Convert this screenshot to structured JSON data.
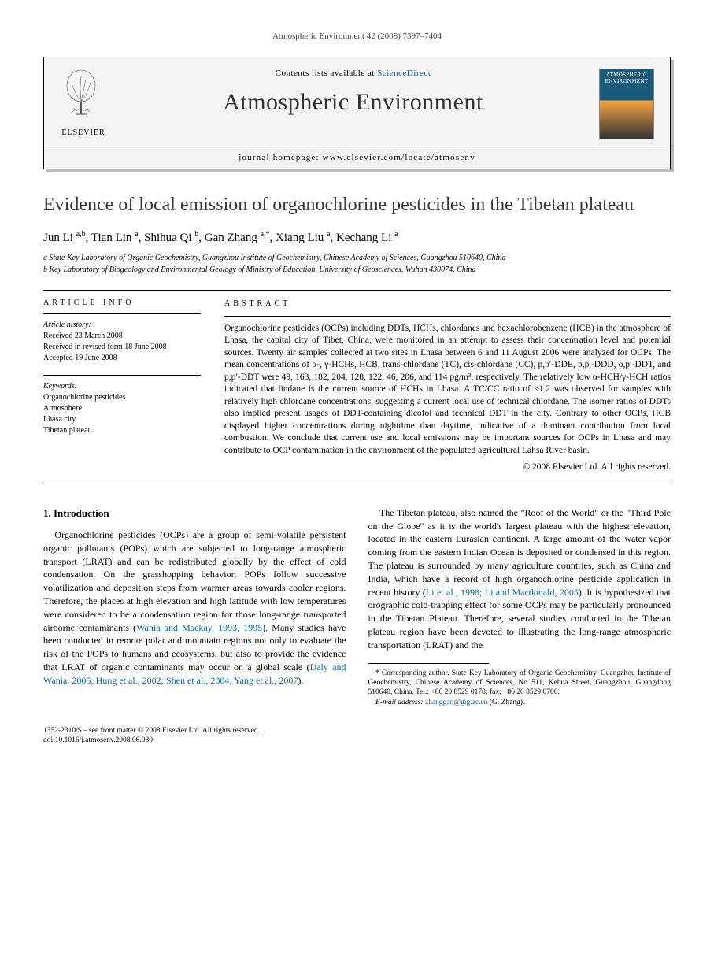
{
  "running_head": "Atmospheric Environment 42 (2008) 7397–7404",
  "header": {
    "contents_prefix": "Contents lists available at ",
    "contents_link": "ScienceDirect",
    "journal_name": "Atmospheric Environment",
    "homepage_label": "journal homepage: ",
    "homepage_url": "www.elsevier.com/locate/atmosenv",
    "publisher_label": "ELSEVIER",
    "cover_text": "ATMOSPHERIC ENVIRONMENT"
  },
  "title": "Evidence of local emission of organochlorine pesticides in the Tibetan plateau",
  "authors_html": "Jun Li <sup>a,b</sup>, Tian Lin <sup>a</sup>, Shihua Qi <sup>b</sup>, Gan Zhang <sup>a,*</sup>, Xiang Liu <sup>a</sup>, Kechang Li <sup>a</sup>",
  "affiliations": [
    "a State Key Laboratory of Organic Geochemistry, Guangzhou Institute of Geochemistry, Chinese Academy of Sciences, Guangzhou 510640, China",
    "b Key Laboratory of Biogeology and Environmental Geology of Ministry of Education, University of Geosciences, Wuhan 430074, China"
  ],
  "article_info": {
    "label": "ARTICLE INFO",
    "history_title": "Article history:",
    "history": [
      "Received 23 March 2008",
      "Received in revised form 18 June 2008",
      "Accepted 19 June 2008"
    ],
    "keywords_title": "Keywords:",
    "keywords": [
      "Organochlorine pesticides",
      "Atmosphere",
      "Lhasa city",
      "Tibetan plateau"
    ]
  },
  "abstract": {
    "label": "ABSTRACT",
    "text": "Organochlorine pesticides (OCPs) including DDTs, HCHs, chlordanes and hexachlorobenzene (HCB) in the atmosphere of Lhasa, the capital city of Tibet, China, were monitored in an attempt to assess their concentration level and potential sources. Twenty air samples collected at two sites in Lhasa between 6 and 11 August 2006 were analyzed for OCPs. The mean concentrations of α-, γ-HCHs, HCB, trans-chlordane (TC), cis-chlordane (CC), p,p′-DDE, p,p′-DDD, o,p′-DDT, and p,p′-DDT were 49, 163, 182, 204, 128, 122, 46, 206, and 114 pg/m³, respectively. The relatively low α-HCH/γ-HCH ratios indicated that lindane is the current source of HCHs in Lhasa. A TC/CC ratio of ≈1.2 was observed for samples with relatively high chlordane concentrations, suggesting a current local use of technical chlordane. The isomer ratios of DDTs also implied present usages of DDT-containing dicofol and technical DDT in the city. Contrary to other OCPs, HCB displayed higher concentrations during nighttime than daytime, indicative of a dominant contribution from local combustion. We conclude that current use and local emissions may be important sources for OCPs in Lhasa and may contribute to OCP contamination in the environment of the populated agricultural Lahsa River basin.",
    "copyright": "© 2008 Elsevier Ltd. All rights reserved."
  },
  "body": {
    "heading": "1. Introduction",
    "p1": "Organochlorine pesticides (OCPs) are a group of semi-volatile persistent organic pollutants (POPs) which are subjected to long-range atmospheric transport (LRAT) and can be redistributed globally by the effect of cold condensation. On the grasshopping behavior, POPs follow successive volatilization and deposition steps from warmer areas towards cooler regions. Therefore, the places at high elevation and high latitude with low temperatures were considered to be a condensation region for those long-range transported airborne contaminants (",
    "cite1": "Wania and Mackay, 1993, 1995",
    "p1b": "). Many studies have been conducted in remote polar and mountain regions not only to evaluate the risk of the POPs to humans and ecosystems, but also to provide the evidence that LRAT of organic contaminants may occur on a global scale (",
    "cite2": "Daly and Wania, 2005; Hung et al., 2002; Shen et al., 2004; Yang et al., 2007",
    "p1c": ").",
    "p2a": "The Tibetan plateau, also named the \"Roof of the World\" or the \"Third Pole on the Globe\" as it is the world's largest plateau with the highest elevation, located in the eastern Eurasian continent. A large amount of the water vapor coming from the eastern Indian Ocean is deposited or condensed in this region. The plateau is surrounded by many agriculture countries, such as China and India, which have a record of high organochlorine pesticide application in recent history (",
    "cite3": "Li et al., 1998; Li and Macdonald, 2005",
    "p2b": "). It is hypothesized that orographic cold-trapping effect for some OCPs may be particularly pronounced in the Tibetan Plateau. Therefore, several studies conducted in the Tibetan plateau region have been devoted to illustrating the long-range atmospheric transportation (LRAT) and the"
  },
  "corresponding": {
    "star": "*",
    "text": " Corresponding author. State Key Laboratory of Organic Geochemistry, Guangzhou Institute of Geochemistry, Chinese Academy of Sciences, No 511, Kehua Street, Guangzhou, Guangdong 510640, China. Tel.: +86 20 8529 0178; fax: +86 20 8529 0706.",
    "email_label": "E-mail address: ",
    "email": "zhanggan@gig.ac.cn",
    "email_suffix": " (G. Zhang)."
  },
  "footer": {
    "line1": "1352-2310/$ – see front matter © 2008 Elsevier Ltd. All rights reserved.",
    "line2": "doi:10.1016/j.atmosenv.2008.06.030"
  },
  "colors": {
    "link": "#0066aa",
    "text": "#000000",
    "title": "#3a3a3a",
    "header_bg": "#f4f4f4"
  }
}
